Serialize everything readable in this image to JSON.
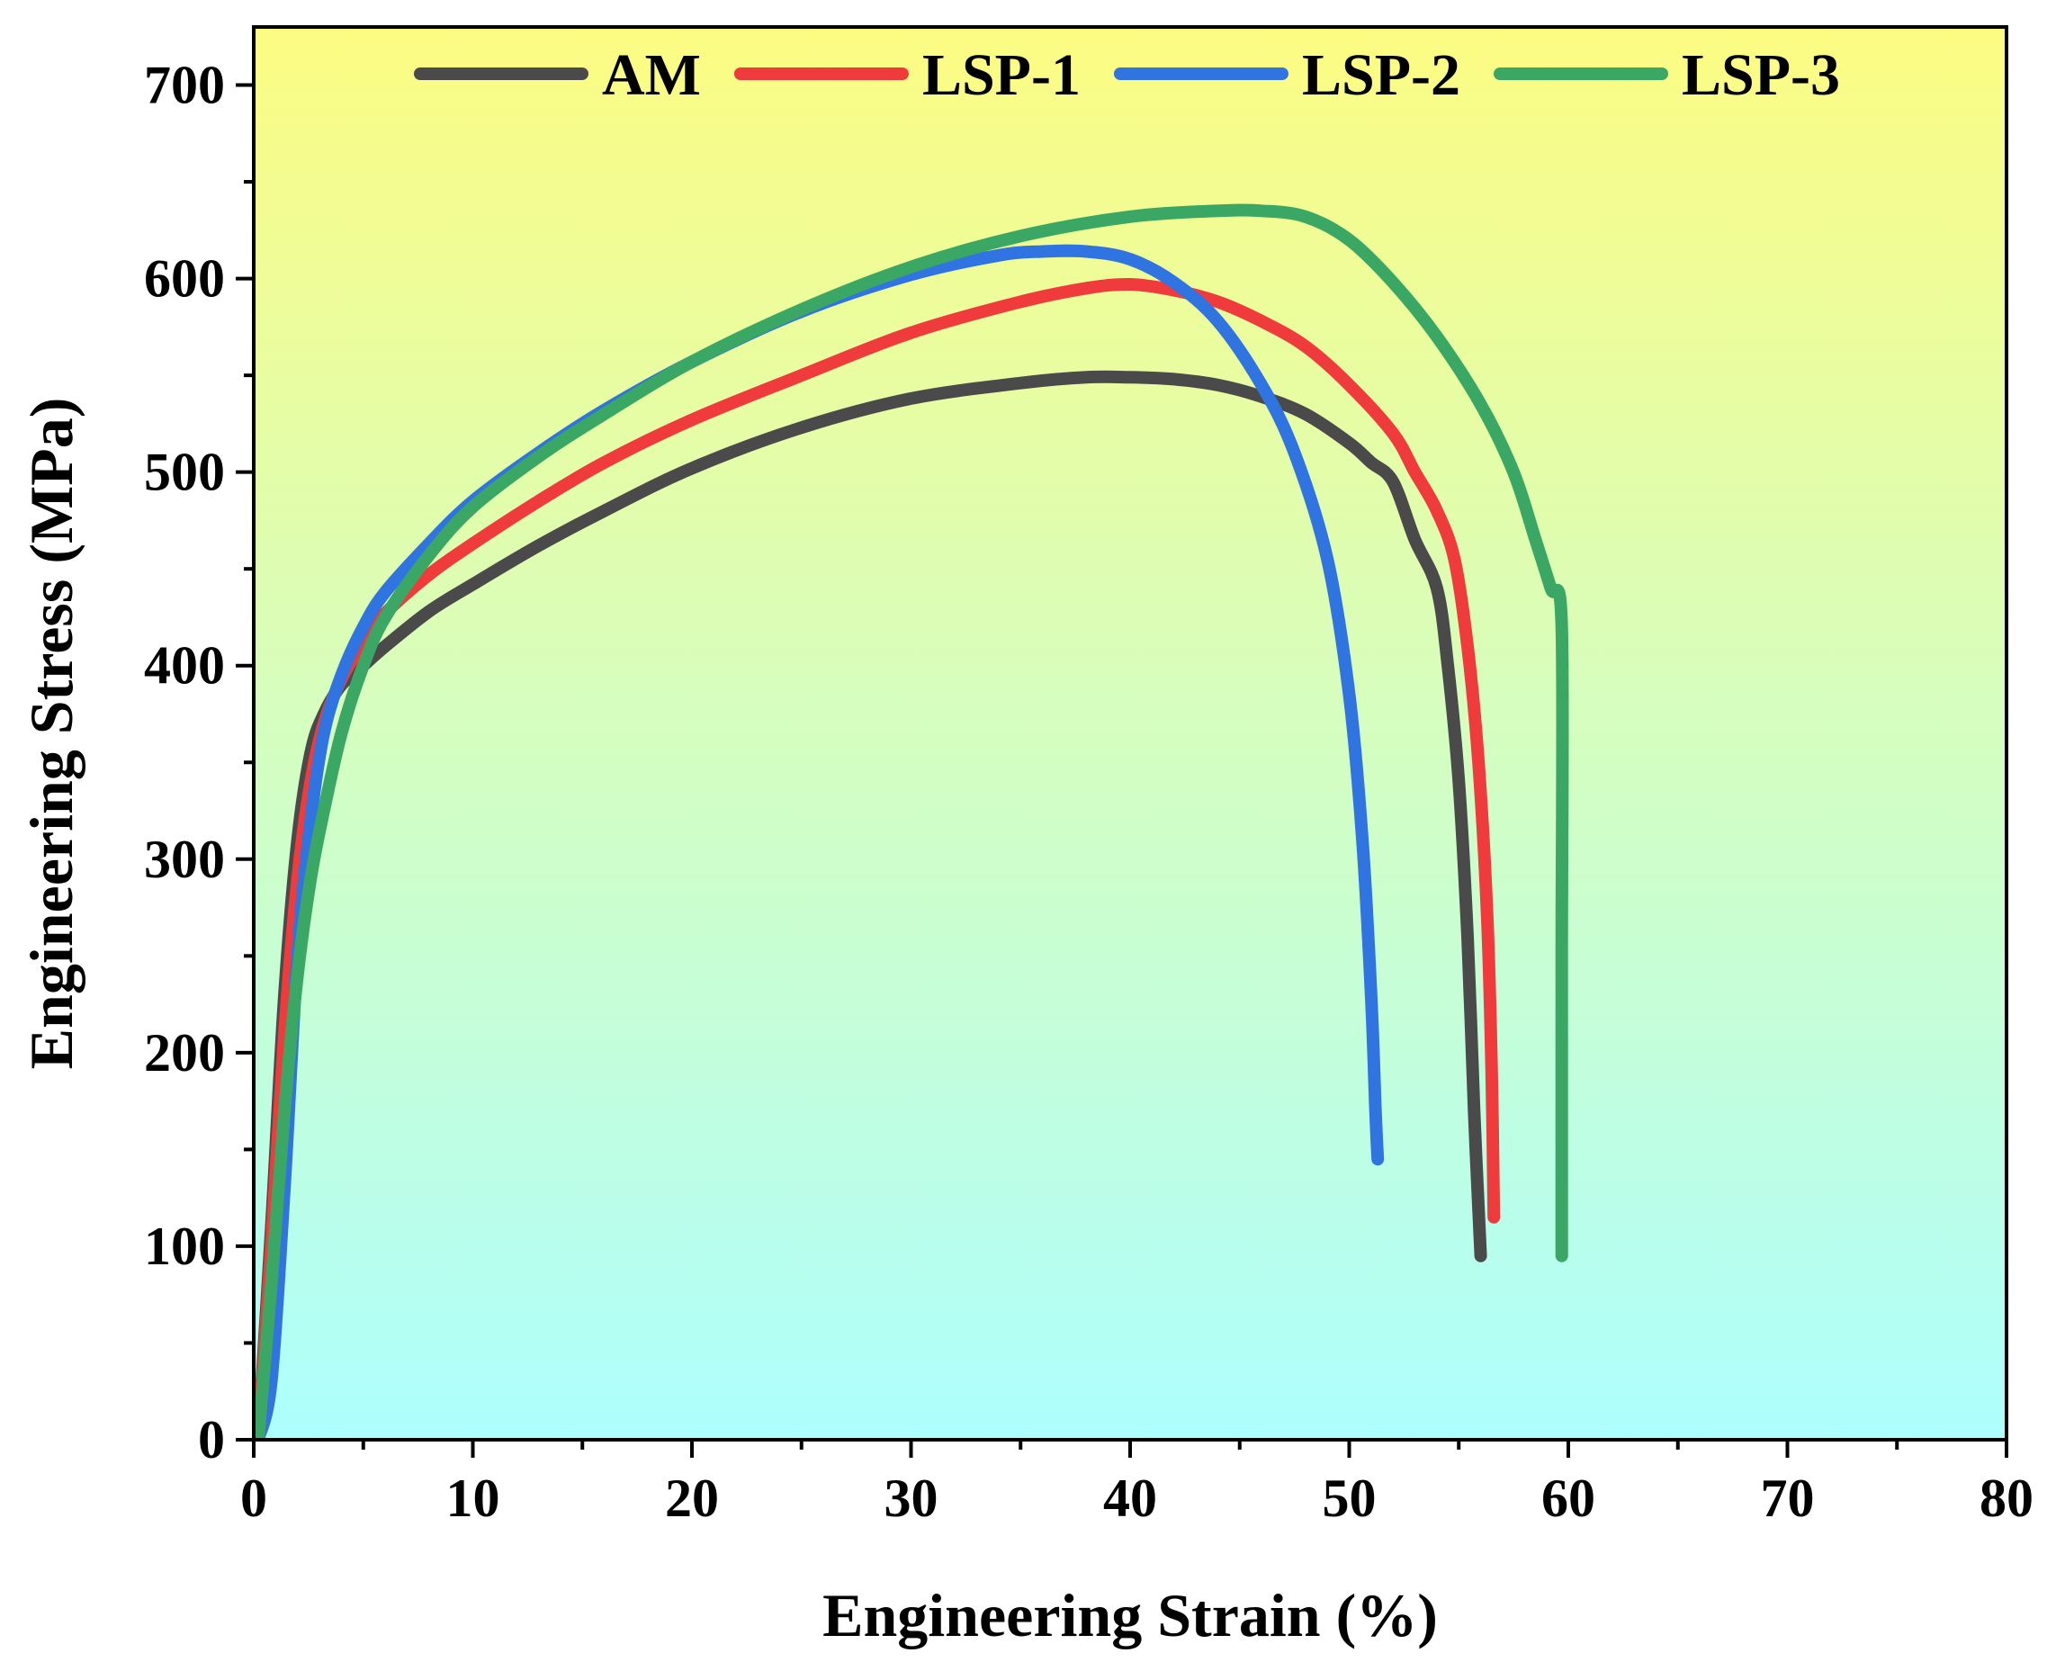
{
  "chart_data": {
    "type": "line",
    "title": "",
    "xlabel": "Engineering Strain (%)",
    "ylabel": "Engineering Stress (MPa)",
    "xlim": [
      0,
      80
    ],
    "ylim": [
      0,
      730
    ],
    "xticks": [
      0,
      10,
      20,
      30,
      40,
      50,
      60,
      70,
      80
    ],
    "yticks": [
      0,
      100,
      200,
      300,
      400,
      500,
      600,
      700
    ],
    "legend_position": "top",
    "colors": {
      "background_top": "#fcfc82",
      "background_bottom": "#adfffe",
      "AM": "#4a4a4a",
      "LSP-1": "#ef3b3b",
      "LSP-2": "#2f74e0",
      "LSP-3": "#3aa864"
    },
    "series": [
      {
        "name": "AM",
        "x": [
          0.2,
          0.8,
          1.4,
          2.0,
          2.6,
          3.2,
          4.0,
          5.0,
          6.0,
          8.0,
          10.0,
          13.0,
          16.0,
          20.0,
          25.0,
          30.0,
          35.0,
          38.0,
          40.0,
          42.0,
          44.0,
          46.0,
          48.0,
          50.0,
          51.0,
          52.0,
          53.0,
          54.0,
          54.5,
          55.0,
          55.4,
          55.7,
          56.0
        ],
        "y": [
          0,
          110,
          230,
          310,
          355,
          375,
          390,
          400,
          410,
          428,
          442,
          462,
          480,
          502,
          523,
          538,
          546,
          549,
          549,
          548,
          545,
          539,
          530,
          515,
          505,
          495,
          465,
          440,
          400,
          340,
          260,
          170,
          95
        ]
      },
      {
        "name": "LSP-1",
        "x": [
          0.2,
          0.8,
          1.4,
          2.0,
          2.6,
          3.2,
          4.0,
          5.0,
          6.0,
          8.0,
          10.0,
          13.0,
          16.0,
          20.0,
          25.0,
          30.0,
          35.0,
          38.0,
          40.0,
          42.0,
          44.0,
          46.0,
          48.0,
          50.0,
          52.0,
          53.0,
          54.0,
          54.8,
          55.4,
          55.9,
          56.3,
          56.5,
          56.6
        ],
        "y": [
          0,
          100,
          210,
          290,
          340,
          370,
          393,
          412,
          427,
          447,
          463,
          485,
          505,
          527,
          550,
          572,
          588,
          595,
          597,
          594,
          588,
          578,
          565,
          545,
          520,
          500,
          480,
          455,
          410,
          350,
          270,
          190,
          115
        ]
      },
      {
        "name": "LSP-2",
        "x": [
          0.2,
          0.8,
          1.4,
          2.0,
          2.6,
          3.2,
          4.0,
          5.0,
          6.0,
          8.0,
          10.0,
          13.0,
          16.0,
          20.0,
          25.0,
          30.0,
          34.0,
          36.0,
          38.0,
          40.0,
          42.0,
          44.0,
          46.0,
          47.5,
          49.0,
          50.0,
          50.6,
          51.0,
          51.2,
          51.3
        ],
        "y": [
          0,
          30,
          130,
          250,
          320,
          365,
          395,
          420,
          438,
          463,
          485,
          510,
          532,
          557,
          583,
          602,
          612,
          614,
          614,
          610,
          598,
          578,
          545,
          510,
          455,
          385,
          310,
          230,
          170,
          145
        ]
      },
      {
        "name": "LSP-3",
        "x": [
          0.2,
          0.8,
          1.4,
          2.0,
          2.6,
          3.2,
          4.0,
          5.0,
          6.0,
          8.0,
          10.0,
          13.0,
          16.0,
          20.0,
          25.0,
          30.0,
          35.0,
          40.0,
          44.0,
          46.0,
          48.0,
          50.0,
          52.0,
          54.0,
          56.0,
          57.5,
          58.5,
          59.2,
          59.7,
          59.7,
          59.7
        ],
        "y": [
          0,
          80,
          170,
          240,
          290,
          325,
          365,
          400,
          425,
          457,
          482,
          508,
          530,
          557,
          584,
          606,
          622,
          632,
          635,
          635,
          632,
          620,
          598,
          570,
          535,
          500,
          465,
          440,
          420,
          250,
          95
        ]
      }
    ]
  }
}
